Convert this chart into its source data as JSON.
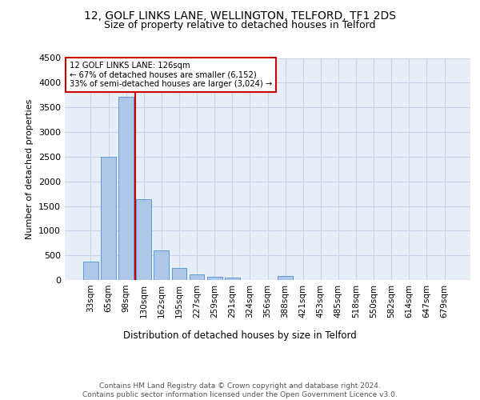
{
  "title1": "12, GOLF LINKS LANE, WELLINGTON, TELFORD, TF1 2DS",
  "title2": "Size of property relative to detached houses in Telford",
  "xlabel": "Distribution of detached houses by size in Telford",
  "ylabel": "Number of detached properties",
  "categories": [
    "33sqm",
    "65sqm",
    "98sqm",
    "130sqm",
    "162sqm",
    "195sqm",
    "227sqm",
    "259sqm",
    "291sqm",
    "324sqm",
    "356sqm",
    "388sqm",
    "421sqm",
    "453sqm",
    "485sqm",
    "518sqm",
    "550sqm",
    "582sqm",
    "614sqm",
    "647sqm",
    "679sqm"
  ],
  "values": [
    380,
    2500,
    3720,
    1630,
    600,
    240,
    110,
    65,
    45,
    0,
    0,
    75,
    0,
    0,
    0,
    0,
    0,
    0,
    0,
    0,
    0
  ],
  "bar_color": "#aec6e8",
  "bar_edge_color": "#5b9bd5",
  "vline_x_idx": 2,
  "vline_color": "#cc0000",
  "annotation_title": "12 GOLF LINKS LANE: 126sqm",
  "annotation_line1": "← 67% of detached houses are smaller (6,152)",
  "annotation_line2": "33% of semi-detached houses are larger (3,024) →",
  "annotation_box_color": "#ffffff",
  "annotation_box_edge": "#cc0000",
  "ylim": [
    0,
    4500
  ],
  "yticks": [
    0,
    500,
    1000,
    1500,
    2000,
    2500,
    3000,
    3500,
    4000,
    4500
  ],
  "grid_color": "#c8d4e8",
  "bg_color": "#e8eef8",
  "footer": "Contains HM Land Registry data © Crown copyright and database right 2024.\nContains public sector information licensed under the Open Government Licence v3.0.",
  "title_fontsize": 10,
  "subtitle_fontsize": 9
}
